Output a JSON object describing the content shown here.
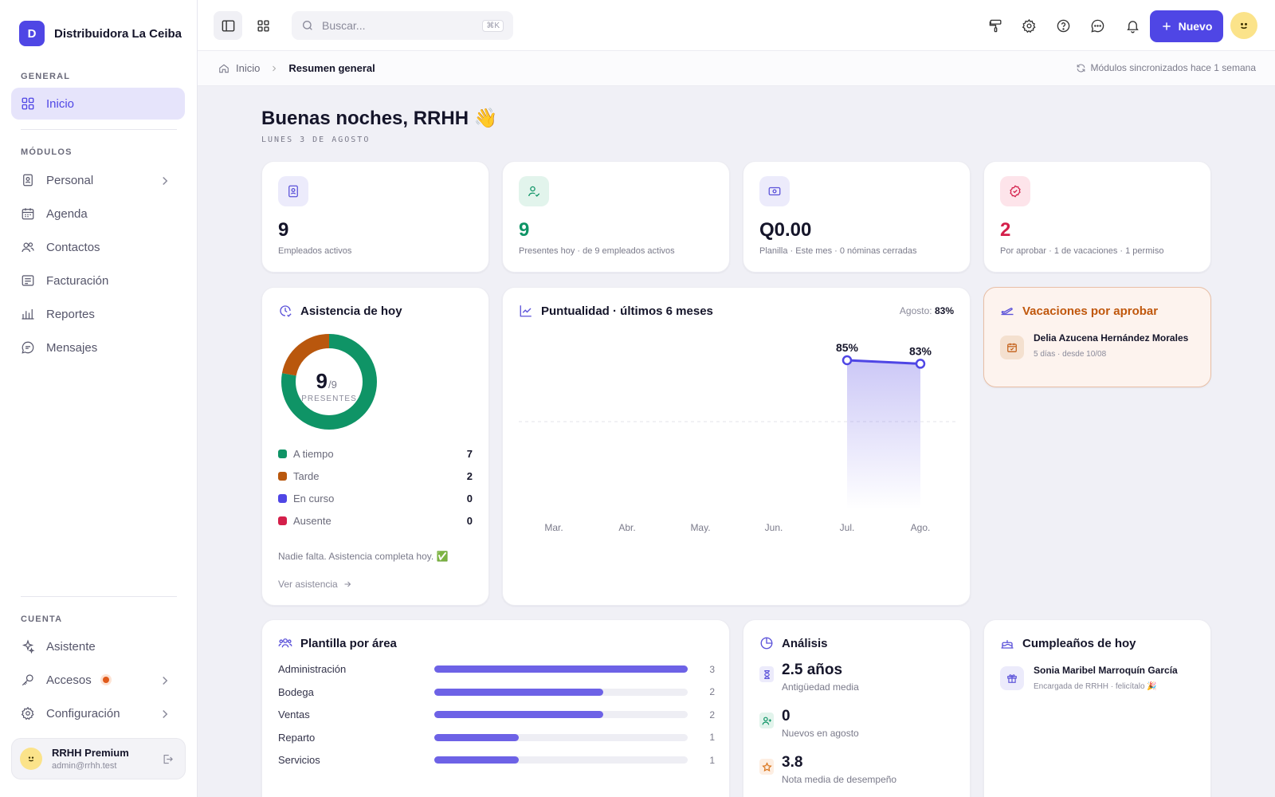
{
  "brand": {
    "initial": "D",
    "name": "Distribuidora La Ceiba"
  },
  "sidebar": {
    "general_label": "GENERAL",
    "home": "Inicio",
    "modules_label": "MÓDULOS",
    "modules": [
      {
        "label": "Personal",
        "icon": "id-badge-icon",
        "has_chevron": true
      },
      {
        "label": "Agenda",
        "icon": "calendar-icon"
      },
      {
        "label": "Contactos",
        "icon": "users-icon"
      },
      {
        "label": "Facturación",
        "icon": "invoice-icon"
      },
      {
        "label": "Reportes",
        "icon": "bar-chart-icon"
      },
      {
        "label": "Mensajes",
        "icon": "message-icon"
      }
    ],
    "account_label": "CUENTA",
    "account": [
      {
        "label": "Asistente",
        "icon": "sparkles-icon"
      },
      {
        "label": "Accesos",
        "icon": "key-icon",
        "badge": true,
        "has_chevron": true
      },
      {
        "label": "Configuración",
        "icon": "gear-icon",
        "has_chevron": true
      }
    ],
    "user": {
      "name": "RRHH Premium",
      "email": "admin@rrhh.test"
    }
  },
  "topbar": {
    "search_placeholder": "Buscar...",
    "search_shortcut": "⌘K",
    "new_label": "Nuevo"
  },
  "breadcrumb": {
    "home": "Inicio",
    "current": "Resumen general",
    "sync": "Módulos sincronizados hace 1 semana"
  },
  "greeting": {
    "title": "Buenas noches, RRHH 👋",
    "date": "LUNES 3 DE AGOSTO"
  },
  "stats": [
    {
      "value": "9",
      "sub": "Empleados activos",
      "color": "#15152a",
      "icon": "id-badge-icon",
      "icon_bg": "#ecebfb",
      "icon_color": "#5b52d9"
    },
    {
      "value": "9",
      "sub": "Presentes hoy · de 9 empleados activos",
      "color": "#0f9466",
      "icon": "user-check-icon",
      "icon_bg": "#e2f4ec",
      "icon_color": "#0f9466"
    },
    {
      "value": "Q0.00",
      "sub": "Planilla · Este mes · 0 nóminas cerradas",
      "color": "#15152a",
      "icon": "banknote-icon",
      "icon_bg": "#ecebfb",
      "icon_color": "#5b52d9"
    },
    {
      "value": "2",
      "sub": "Por aprobar · 1 de vacaciones · 1 permiso",
      "color": "#d41f4a",
      "icon": "badge-check-icon",
      "icon_bg": "#fde4ea",
      "icon_color": "#d41f4a"
    }
  ],
  "attendance": {
    "title": "Asistencia de hoy",
    "present": "9",
    "total": "/9",
    "present_label": "PRESENTES",
    "legend": [
      {
        "label": "A tiempo",
        "value": "7",
        "color": "#0f9466"
      },
      {
        "label": "Tarde",
        "value": "2",
        "color": "#b9570d"
      },
      {
        "label": "En curso",
        "value": "0",
        "color": "#4f46e5"
      },
      {
        "label": "Ausente",
        "value": "0",
        "color": "#d41f4a"
      }
    ],
    "note": "Nadie falta. Asistencia completa hoy. ✅",
    "link": "Ver asistencia"
  },
  "punctuality": {
    "title": "Puntualidad · últimos 6 meses",
    "latest_label": "Agosto:",
    "latest_value": "83%"
  },
  "chart_data": {
    "type": "area",
    "categories": [
      "Mar.",
      "Abr.",
      "May.",
      "Jun.",
      "Jul.",
      "Ago."
    ],
    "values": [
      null,
      null,
      null,
      null,
      85,
      83
    ],
    "data_labels": [
      "",
      "",
      "",
      "",
      "85%",
      "83%"
    ],
    "ylim": [
      0,
      100
    ],
    "reference_line": 50,
    "color": "#4f46e5"
  },
  "vacations": {
    "title": "Vacaciones por aprobar",
    "items": [
      {
        "name": "Delia Azucena Hernández Morales",
        "detail": "5 días · desde 10/08"
      }
    ]
  },
  "areas": {
    "title": "Plantilla por área",
    "max": 3,
    "rows": [
      {
        "label": "Administración",
        "value": 3
      },
      {
        "label": "Bodega",
        "value": 2
      },
      {
        "label": "Ventas",
        "value": 2
      },
      {
        "label": "Reparto",
        "value": 1
      },
      {
        "label": "Servicios",
        "value": 1
      }
    ]
  },
  "analysis": {
    "title": "Análisis",
    "items": [
      {
        "value": "2.5 años",
        "sub": "Antigüedad media",
        "icon": "hourglass-icon",
        "bg": "#ecebfb",
        "color": "#5b52d9"
      },
      {
        "value": "0",
        "sub": "Nuevos en agosto",
        "icon": "user-plus-icon",
        "bg": "#e2f4ec",
        "color": "#0f9466"
      },
      {
        "value": "3.8",
        "sub": "Nota media de desempeño",
        "icon": "star-icon",
        "bg": "#fdeee2",
        "color": "#d9731a"
      }
    ]
  },
  "birthdays": {
    "title": "Cumpleaños de hoy",
    "items": [
      {
        "name": "Sonia Maribel Marroquín García",
        "detail": "Encargada de RRHH · felicítalo 🎉"
      }
    ]
  }
}
